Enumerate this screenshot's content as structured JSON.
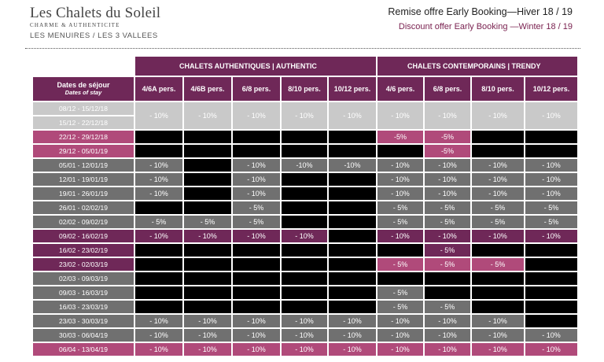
{
  "header": {
    "logo_name": "Les Chalets du Soleil",
    "logo_tagline": "CHARME & AUTHENTICITE",
    "location": "LES MENUIRES / LES 3 VALLEES",
    "title_fr": "Remise offre Early Booking—Hiver 18 / 19",
    "title_en": "Discount offer Early Booking —Winter 18 / 19"
  },
  "table": {
    "group_authentic": "CHALETS AUTHENTIQUES | AUTHENTIC",
    "group_trendy": "CHALETS CONTEMPORAINS | TRENDY",
    "dates_header_fr": "Dates de séjour",
    "dates_header_en": "Dates of stay",
    "columns": [
      "4/6A pers.",
      "4/6B pers.",
      "6/8 pers.",
      "8/10 pers.",
      "10/12 pers.",
      "4/6 pers.",
      "6/8 pers.",
      "8/10 pers.",
      "10/12 pers."
    ],
    "rows": [
      {
        "dates": "08/12 - 15/12/18",
        "band": "lg",
        "cells": [
          {
            "v": "- 10%",
            "c": "lg"
          },
          {
            "v": "- 10%",
            "c": "lg"
          },
          {
            "v": "- 10%",
            "c": "lg"
          },
          {
            "v": "- 10%",
            "c": "lg"
          },
          {
            "v": "- 10%",
            "c": "lg"
          },
          {
            "v": "- 10%",
            "c": "lg"
          },
          {
            "v": "- 10%",
            "c": "lg"
          },
          {
            "v": "- 10%",
            "c": "lg"
          },
          {
            "v": "- 10%",
            "c": "lg"
          }
        ],
        "span": true
      },
      {
        "dates": "15/12 - 22/12/18",
        "band": "lg"
      },
      {
        "dates": "22/12 - 29/12/18",
        "band": "pk",
        "cells": [
          {
            "v": "",
            "c": "bk"
          },
          {
            "v": "",
            "c": "bk"
          },
          {
            "v": "",
            "c": "bk"
          },
          {
            "v": "",
            "c": "bk"
          },
          {
            "v": "",
            "c": "bk"
          },
          {
            "v": "-5%",
            "c": "pk"
          },
          {
            "v": "-5%",
            "c": "pk"
          },
          {
            "v": "",
            "c": "bk"
          },
          {
            "v": "",
            "c": "bk"
          }
        ]
      },
      {
        "dates": "29/12 - 05/01/19",
        "band": "pk",
        "cells": [
          {
            "v": "",
            "c": "bk"
          },
          {
            "v": "",
            "c": "bk"
          },
          {
            "v": "",
            "c": "bk"
          },
          {
            "v": "",
            "c": "bk"
          },
          {
            "v": "",
            "c": "bk"
          },
          {
            "v": "",
            "c": "bk"
          },
          {
            "v": "-5%",
            "c": "pk"
          },
          {
            "v": "",
            "c": "bk"
          },
          {
            "v": "",
            "c": "bk"
          }
        ]
      },
      {
        "dates": "05/01 - 12/01/19",
        "band": "mg",
        "cells": [
          {
            "v": "- 10%",
            "c": "mg"
          },
          {
            "v": "",
            "c": "bk"
          },
          {
            "v": "- 10%",
            "c": "mg"
          },
          {
            "v": "-10%",
            "c": "mg"
          },
          {
            "v": "-10%",
            "c": "mg"
          },
          {
            "v": "- 10%",
            "c": "mg"
          },
          {
            "v": "- 10%",
            "c": "mg"
          },
          {
            "v": "- 10%",
            "c": "mg"
          },
          {
            "v": "- 10%",
            "c": "mg"
          }
        ]
      },
      {
        "dates": "12/01 - 19/01/19",
        "band": "mg",
        "cells": [
          {
            "v": "- 10%",
            "c": "mg"
          },
          {
            "v": "",
            "c": "bk"
          },
          {
            "v": "- 10%",
            "c": "mg"
          },
          {
            "v": "",
            "c": "bk"
          },
          {
            "v": "",
            "c": "bk"
          },
          {
            "v": "- 10%",
            "c": "mg"
          },
          {
            "v": "- 10%",
            "c": "mg"
          },
          {
            "v": "- 10%",
            "c": "mg"
          },
          {
            "v": "- 10%",
            "c": "mg"
          }
        ]
      },
      {
        "dates": "19/01 - 26/01/19",
        "band": "mg",
        "cells": [
          {
            "v": "- 10%",
            "c": "mg"
          },
          {
            "v": "",
            "c": "bk"
          },
          {
            "v": "- 10%",
            "c": "mg"
          },
          {
            "v": "",
            "c": "bk"
          },
          {
            "v": "",
            "c": "bk"
          },
          {
            "v": "- 10%",
            "c": "mg"
          },
          {
            "v": "- 10%",
            "c": "mg"
          },
          {
            "v": "- 10%",
            "c": "mg"
          },
          {
            "v": "- 10%",
            "c": "mg"
          }
        ]
      },
      {
        "dates": "26/01 - 02/02/19",
        "band": "mg",
        "cells": [
          {
            "v": "",
            "c": "bk"
          },
          {
            "v": "",
            "c": "bk"
          },
          {
            "v": "- 5%",
            "c": "mg"
          },
          {
            "v": "",
            "c": "bk"
          },
          {
            "v": "",
            "c": "bk"
          },
          {
            "v": "- 5%",
            "c": "mg"
          },
          {
            "v": "- 5%",
            "c": "mg"
          },
          {
            "v": "- 5%",
            "c": "mg"
          },
          {
            "v": "- 5%",
            "c": "mg"
          }
        ]
      },
      {
        "dates": "02/02 - 09/02/19",
        "band": "mg",
        "cells": [
          {
            "v": "- 5%",
            "c": "mg"
          },
          {
            "v": "- 5%",
            "c": "mg"
          },
          {
            "v": "- 5%",
            "c": "mg"
          },
          {
            "v": "",
            "c": "bk"
          },
          {
            "v": "",
            "c": "bk"
          },
          {
            "v": "- 5%",
            "c": "mg"
          },
          {
            "v": "- 5%",
            "c": "mg"
          },
          {
            "v": "- 5%",
            "c": "mg"
          },
          {
            "v": "- 5%",
            "c": "mg"
          }
        ]
      },
      {
        "dates": "09/02 - 16/02/19",
        "band": "dp",
        "cells": [
          {
            "v": "- 10%",
            "c": "dp"
          },
          {
            "v": "- 10%",
            "c": "dp"
          },
          {
            "v": "- 10%",
            "c": "dp"
          },
          {
            "v": "- 10%",
            "c": "dp"
          },
          {
            "v": "",
            "c": "bk"
          },
          {
            "v": "- 10%",
            "c": "dp"
          },
          {
            "v": "- 10%",
            "c": "dp"
          },
          {
            "v": "- 10%",
            "c": "dp"
          },
          {
            "v": "- 10%",
            "c": "dp"
          }
        ]
      },
      {
        "dates": "16/02 - 23/02/19",
        "band": "dp",
        "cells": [
          {
            "v": "",
            "c": "bk"
          },
          {
            "v": "",
            "c": "bk"
          },
          {
            "v": "",
            "c": "bk"
          },
          {
            "v": "",
            "c": "bk"
          },
          {
            "v": "",
            "c": "bk"
          },
          {
            "v": "",
            "c": "bk"
          },
          {
            "v": "- 5%",
            "c": "dp"
          },
          {
            "v": "",
            "c": "bk"
          },
          {
            "v": "",
            "c": "bk"
          }
        ]
      },
      {
        "dates": "23/02 - 02/03/19",
        "band": "dp",
        "cells": [
          {
            "v": "",
            "c": "bk"
          },
          {
            "v": "",
            "c": "bk"
          },
          {
            "v": "",
            "c": "bk"
          },
          {
            "v": "",
            "c": "bk"
          },
          {
            "v": "",
            "c": "bk"
          },
          {
            "v": "- 5%",
            "c": "pk"
          },
          {
            "v": "- 5%",
            "c": "pk"
          },
          {
            "v": "- 5%",
            "c": "pk"
          },
          {
            "v": "",
            "c": "bk"
          }
        ]
      },
      {
        "dates": "02/03 - 09/03/19",
        "band": "mg",
        "cells": [
          {
            "v": "",
            "c": "bk"
          },
          {
            "v": "",
            "c": "bk"
          },
          {
            "v": "",
            "c": "bk"
          },
          {
            "v": "",
            "c": "bk"
          },
          {
            "v": "",
            "c": "bk"
          },
          {
            "v": "",
            "c": "bk"
          },
          {
            "v": "",
            "c": "bk"
          },
          {
            "v": "",
            "c": "bk"
          },
          {
            "v": "",
            "c": "bk"
          }
        ]
      },
      {
        "dates": "09/03 - 16/03/19",
        "band": "mg",
        "cells": [
          {
            "v": "",
            "c": "bk"
          },
          {
            "v": "",
            "c": "bk"
          },
          {
            "v": "",
            "c": "bk"
          },
          {
            "v": "",
            "c": "bk"
          },
          {
            "v": "",
            "c": "bk"
          },
          {
            "v": "- 5%",
            "c": "mg"
          },
          {
            "v": "",
            "c": "bk"
          },
          {
            "v": "",
            "c": "bk"
          },
          {
            "v": "",
            "c": "bk"
          }
        ]
      },
      {
        "dates": "16/03 - 23/03/19",
        "band": "mg",
        "cells": [
          {
            "v": "",
            "c": "bk"
          },
          {
            "v": "",
            "c": "bk"
          },
          {
            "v": "",
            "c": "bk"
          },
          {
            "v": "",
            "c": "bk"
          },
          {
            "v": "",
            "c": "bk"
          },
          {
            "v": "- 5%",
            "c": "mg"
          },
          {
            "v": "- 5%",
            "c": "mg"
          },
          {
            "v": "",
            "c": "bk"
          },
          {
            "v": "",
            "c": "bk"
          }
        ]
      },
      {
        "dates": "23/03 - 30/03/19",
        "band": "mg",
        "cells": [
          {
            "v": "- 10%",
            "c": "mg"
          },
          {
            "v": "- 10%",
            "c": "mg"
          },
          {
            "v": "- 10%",
            "c": "mg"
          },
          {
            "v": "- 10%",
            "c": "mg"
          },
          {
            "v": "- 10%",
            "c": "mg"
          },
          {
            "v": "- 10%",
            "c": "mg"
          },
          {
            "v": "- 10%",
            "c": "mg"
          },
          {
            "v": "- 10%",
            "c": "mg"
          },
          {
            "v": "",
            "c": "bk"
          }
        ]
      },
      {
        "dates": "30/03 - 06/04/19",
        "band": "mg",
        "cells": [
          {
            "v": "- 10%",
            "c": "mg"
          },
          {
            "v": "- 10%",
            "c": "mg"
          },
          {
            "v": "- 10%",
            "c": "mg"
          },
          {
            "v": "- 10%",
            "c": "mg"
          },
          {
            "v": "- 10%",
            "c": "mg"
          },
          {
            "v": "- 10%",
            "c": "mg"
          },
          {
            "v": "- 10%",
            "c": "mg"
          },
          {
            "v": "- 10%",
            "c": "mg"
          },
          {
            "v": "- 10%",
            "c": "mg"
          }
        ]
      },
      {
        "dates": "06/04 - 13/04/19",
        "band": "pk",
        "cells": [
          {
            "v": "- 10%",
            "c": "pk"
          },
          {
            "v": "- 10%",
            "c": "pk"
          },
          {
            "v": "- 10%",
            "c": "pk"
          },
          {
            "v": "- 10%",
            "c": "pk"
          },
          {
            "v": "- 10%",
            "c": "pk"
          },
          {
            "v": "- 10%",
            "c": "pk"
          },
          {
            "v": "- 10%",
            "c": "pk"
          },
          {
            "v": "- 10%",
            "c": "pk"
          },
          {
            "v": "- 10%",
            "c": "pk"
          }
        ]
      }
    ]
  },
  "colors": {
    "plum": "#6f2858",
    "pink": "#b04a7a",
    "grey": "#707070",
    "light_grey": "#c9c9c9",
    "black": "#000000"
  }
}
